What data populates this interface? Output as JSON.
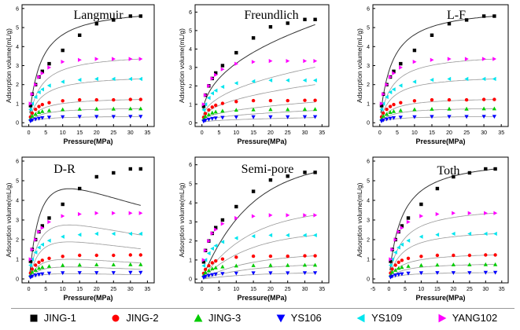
{
  "figure": {
    "legend": {
      "placement": "bottom",
      "items": [
        {
          "label": "JING-1",
          "color": "#000000",
          "marker": "square"
        },
        {
          "label": "JING-2",
          "color": "#ff0000",
          "marker": "circle"
        },
        {
          "label": "JING-3",
          "color": "#00cc00",
          "marker": "triangle-up"
        },
        {
          "label": "YS106",
          "color": "#0000ff",
          "marker": "triangle-down"
        },
        {
          "label": "YS109",
          "color": "#00e5ee",
          "marker": "triangle-left"
        },
        {
          "label": "YANG102",
          "color": "#ff00ff",
          "marker": "triangle-right"
        }
      ]
    }
  },
  "chart_data": [
    {
      "type": "scatter",
      "title": "Langmuir",
      "xlabel": "Pressure(MPa)",
      "ylabel": "Adsorption volume(mL/g)",
      "xlim": [
        -2,
        37
      ],
      "ylim": [
        -0.2,
        6.2
      ],
      "xticks": [
        "0",
        "5",
        "10",
        "15",
        "20",
        "25",
        "30",
        "35"
      ],
      "yticks": [
        "0",
        "1",
        "2",
        "3",
        "4",
        "5",
        "6"
      ],
      "x": [
        0.5,
        1,
        2,
        3,
        4,
        6,
        10,
        15,
        20,
        25,
        30,
        33
      ],
      "series": [
        {
          "name": "JING-1",
          "values": [
            0.9,
            1.5,
            2.0,
            2.4,
            2.7,
            3.1,
            3.8,
            4.6,
            5.2,
            5.4,
            5.6,
            5.6
          ]
        },
        {
          "name": "JING-2",
          "values": [
            0.3,
            0.5,
            0.7,
            0.85,
            0.95,
            1.05,
            1.15,
            1.2,
            1.2,
            1.2,
            1.22,
            1.22
          ]
        },
        {
          "name": "JING-3",
          "values": [
            0.2,
            0.35,
            0.45,
            0.55,
            0.6,
            0.65,
            0.7,
            0.72,
            0.73,
            0.73,
            0.74,
            0.74
          ]
        },
        {
          "name": "YS106",
          "values": [
            0.08,
            0.13,
            0.18,
            0.22,
            0.25,
            0.28,
            0.3,
            0.31,
            0.31,
            0.31,
            0.32,
            0.32
          ]
        },
        {
          "name": "YS109",
          "values": [
            0.7,
            1.0,
            1.35,
            1.6,
            1.75,
            1.95,
            2.15,
            2.25,
            2.3,
            2.3,
            2.3,
            2.3
          ]
        },
        {
          "name": "YANG102",
          "values": [
            1.0,
            1.5,
            2.0,
            2.4,
            2.6,
            2.9,
            3.2,
            3.3,
            3.35,
            3.35,
            3.35,
            3.35
          ]
        }
      ]
    },
    {
      "type": "scatter",
      "title": "Freundlich",
      "xlabel": "Pressure(MPa)",
      "ylabel": "Adsorption volume(mL/g)",
      "xlim": [
        -2,
        37
      ],
      "ylim": [
        -0.2,
        6.4
      ],
      "xticks": [
        "0",
        "5",
        "10",
        "15",
        "20",
        "25",
        "30",
        "35"
      ],
      "yticks": [
        "0",
        "1",
        "2",
        "3",
        "4",
        "5",
        "6"
      ],
      "x": [
        0.5,
        1,
        2,
        3,
        4,
        6,
        10,
        15,
        20,
        25,
        30,
        33
      ],
      "series": [
        {
          "name": "JING-1",
          "values": [
            0.9,
            1.5,
            2.0,
            2.4,
            2.7,
            3.1,
            3.8,
            4.6,
            5.2,
            5.4,
            5.6,
            5.6
          ]
        },
        {
          "name": "JING-2",
          "values": [
            0.3,
            0.5,
            0.7,
            0.85,
            0.95,
            1.05,
            1.15,
            1.2,
            1.2,
            1.2,
            1.22,
            1.22
          ]
        },
        {
          "name": "JING-3",
          "values": [
            0.2,
            0.35,
            0.45,
            0.55,
            0.6,
            0.65,
            0.7,
            0.72,
            0.73,
            0.73,
            0.74,
            0.74
          ]
        },
        {
          "name": "YS106",
          "values": [
            0.08,
            0.13,
            0.18,
            0.22,
            0.25,
            0.28,
            0.3,
            0.31,
            0.31,
            0.31,
            0.32,
            0.32
          ]
        },
        {
          "name": "YS109",
          "values": [
            0.7,
            1.0,
            1.35,
            1.6,
            1.75,
            1.95,
            2.15,
            2.25,
            2.3,
            2.3,
            2.3,
            2.3
          ]
        },
        {
          "name": "YANG102",
          "values": [
            1.0,
            1.5,
            2.0,
            2.4,
            2.6,
            2.9,
            3.2,
            3.3,
            3.35,
            3.35,
            3.35,
            3.35
          ]
        }
      ]
    },
    {
      "type": "scatter",
      "title": "L-F",
      "xlabel": "Pressure(MPa)",
      "ylabel": "Adsorption volume(mL/g)",
      "xlim": [
        -2,
        37
      ],
      "ylim": [
        -0.2,
        6.2
      ],
      "xticks": [
        "0",
        "5",
        "10",
        "15",
        "20",
        "25",
        "30",
        "35"
      ],
      "yticks": [
        "0",
        "1",
        "2",
        "3",
        "4",
        "5",
        "6"
      ],
      "x": [
        0.5,
        1,
        2,
        3,
        4,
        6,
        10,
        15,
        20,
        25,
        30,
        33
      ],
      "series": [
        {
          "name": "JING-1",
          "values": [
            0.9,
            1.5,
            2.0,
            2.4,
            2.7,
            3.1,
            3.8,
            4.6,
            5.2,
            5.4,
            5.6,
            5.6
          ]
        },
        {
          "name": "JING-2",
          "values": [
            0.3,
            0.5,
            0.7,
            0.85,
            0.95,
            1.05,
            1.15,
            1.2,
            1.2,
            1.2,
            1.22,
            1.22
          ]
        },
        {
          "name": "JING-3",
          "values": [
            0.2,
            0.35,
            0.45,
            0.55,
            0.6,
            0.65,
            0.7,
            0.72,
            0.73,
            0.73,
            0.74,
            0.74
          ]
        },
        {
          "name": "YS106",
          "values": [
            0.08,
            0.13,
            0.18,
            0.22,
            0.25,
            0.28,
            0.3,
            0.31,
            0.31,
            0.31,
            0.32,
            0.32
          ]
        },
        {
          "name": "YS109",
          "values": [
            0.7,
            1.0,
            1.35,
            1.6,
            1.75,
            1.95,
            2.15,
            2.25,
            2.3,
            2.3,
            2.3,
            2.3
          ]
        },
        {
          "name": "YANG102",
          "values": [
            1.0,
            1.5,
            2.0,
            2.4,
            2.6,
            2.9,
            3.2,
            3.3,
            3.35,
            3.35,
            3.35,
            3.35
          ]
        }
      ]
    },
    {
      "type": "scatter",
      "title": "D-R",
      "xlabel": "Pressure(MPa)",
      "ylabel": "Adsorption volume(mL/g)",
      "xlim": [
        -2,
        37
      ],
      "ylim": [
        -0.2,
        6.2
      ],
      "xticks": [
        "0",
        "5",
        "10",
        "15",
        "20",
        "25",
        "30",
        "35"
      ],
      "yticks": [
        "0",
        "1",
        "2",
        "3",
        "4",
        "5",
        "6"
      ],
      "x": [
        0.5,
        1,
        2,
        3,
        4,
        6,
        10,
        15,
        20,
        25,
        30,
        33
      ],
      "series": [
        {
          "name": "JING-1",
          "values": [
            0.9,
            1.5,
            2.0,
            2.4,
            2.7,
            3.1,
            3.8,
            4.6,
            5.2,
            5.4,
            5.6,
            5.6
          ]
        },
        {
          "name": "JING-2",
          "values": [
            0.3,
            0.5,
            0.7,
            0.85,
            0.95,
            1.05,
            1.15,
            1.2,
            1.2,
            1.2,
            1.22,
            1.22
          ]
        },
        {
          "name": "JING-3",
          "values": [
            0.2,
            0.35,
            0.45,
            0.55,
            0.6,
            0.65,
            0.7,
            0.72,
            0.73,
            0.73,
            0.74,
            0.74
          ]
        },
        {
          "name": "YS106",
          "values": [
            0.08,
            0.13,
            0.18,
            0.22,
            0.25,
            0.28,
            0.3,
            0.31,
            0.31,
            0.31,
            0.32,
            0.32
          ]
        },
        {
          "name": "YS109",
          "values": [
            0.7,
            1.0,
            1.35,
            1.6,
            1.75,
            1.95,
            2.15,
            2.25,
            2.3,
            2.3,
            2.3,
            2.3
          ]
        },
        {
          "name": "YANG102",
          "values": [
            1.0,
            1.5,
            2.0,
            2.4,
            2.6,
            2.9,
            3.2,
            3.3,
            3.35,
            3.35,
            3.35,
            3.35
          ]
        }
      ]
    },
    {
      "type": "scatter",
      "title": "Semi-pore",
      "xlabel": "Pressure(MPa)",
      "ylabel": "Adsorption volume(mL/g)",
      "xlim": [
        -2,
        37
      ],
      "ylim": [
        -0.2,
        6.4
      ],
      "xticks": [
        "0",
        "5",
        "10",
        "15",
        "20",
        "25",
        "30",
        "35"
      ],
      "yticks": [
        "0",
        "1",
        "2",
        "3",
        "4",
        "5",
        "6"
      ],
      "x": [
        0.5,
        1,
        2,
        3,
        4,
        6,
        10,
        15,
        20,
        25,
        30,
        33
      ],
      "series": [
        {
          "name": "JING-1",
          "values": [
            0.9,
            1.5,
            2.0,
            2.4,
            2.7,
            3.1,
            3.8,
            4.6,
            5.2,
            5.4,
            5.6,
            5.6
          ]
        },
        {
          "name": "JING-2",
          "values": [
            0.3,
            0.5,
            0.7,
            0.85,
            0.95,
            1.05,
            1.15,
            1.2,
            1.2,
            1.2,
            1.22,
            1.22
          ]
        },
        {
          "name": "JING-3",
          "values": [
            0.2,
            0.35,
            0.45,
            0.55,
            0.6,
            0.65,
            0.7,
            0.72,
            0.73,
            0.73,
            0.74,
            0.74
          ]
        },
        {
          "name": "YS106",
          "values": [
            0.08,
            0.13,
            0.18,
            0.22,
            0.25,
            0.28,
            0.3,
            0.31,
            0.31,
            0.31,
            0.32,
            0.32
          ]
        },
        {
          "name": "YS109",
          "values": [
            0.7,
            1.0,
            1.35,
            1.6,
            1.75,
            1.95,
            2.15,
            2.25,
            2.3,
            2.3,
            2.3,
            2.3
          ]
        },
        {
          "name": "YANG102",
          "values": [
            1.0,
            1.5,
            2.0,
            2.4,
            2.6,
            2.9,
            3.2,
            3.3,
            3.35,
            3.35,
            3.35,
            3.35
          ]
        }
      ]
    },
    {
      "type": "scatter",
      "title": "Toth",
      "xlabel": "Pressure(MPa)",
      "ylabel": "Adsorption volume(mL/g)",
      "xlim": [
        -5,
        37
      ],
      "ylim": [
        -0.2,
        6.2
      ],
      "xticks": [
        "-5",
        "0",
        "5",
        "10",
        "15",
        "20",
        "25",
        "30",
        "35"
      ],
      "yticks": [
        "0",
        "1",
        "2",
        "3",
        "4",
        "5",
        "6"
      ],
      "x": [
        0.5,
        1,
        2,
        3,
        4,
        6,
        10,
        15,
        20,
        25,
        30,
        33
      ],
      "series": [
        {
          "name": "JING-1",
          "values": [
            0.9,
            1.5,
            2.0,
            2.4,
            2.7,
            3.1,
            3.8,
            4.6,
            5.2,
            5.4,
            5.6,
            5.6
          ]
        },
        {
          "name": "JING-2",
          "values": [
            0.3,
            0.5,
            0.7,
            0.85,
            0.95,
            1.05,
            1.15,
            1.2,
            1.2,
            1.2,
            1.22,
            1.22
          ]
        },
        {
          "name": "JING-3",
          "values": [
            0.2,
            0.35,
            0.45,
            0.55,
            0.6,
            0.65,
            0.7,
            0.72,
            0.73,
            0.73,
            0.74,
            0.74
          ]
        },
        {
          "name": "YS106",
          "values": [
            0.08,
            0.13,
            0.18,
            0.22,
            0.25,
            0.28,
            0.3,
            0.31,
            0.31,
            0.31,
            0.32,
            0.32
          ]
        },
        {
          "name": "YS109",
          "values": [
            0.7,
            1.0,
            1.35,
            1.6,
            1.75,
            1.95,
            2.15,
            2.25,
            2.3,
            2.3,
            2.3,
            2.3
          ]
        },
        {
          "name": "YANG102",
          "values": [
            1.0,
            1.5,
            2.0,
            2.4,
            2.6,
            2.9,
            3.2,
            3.3,
            3.35,
            3.35,
            3.35,
            3.35
          ]
        }
      ]
    }
  ]
}
